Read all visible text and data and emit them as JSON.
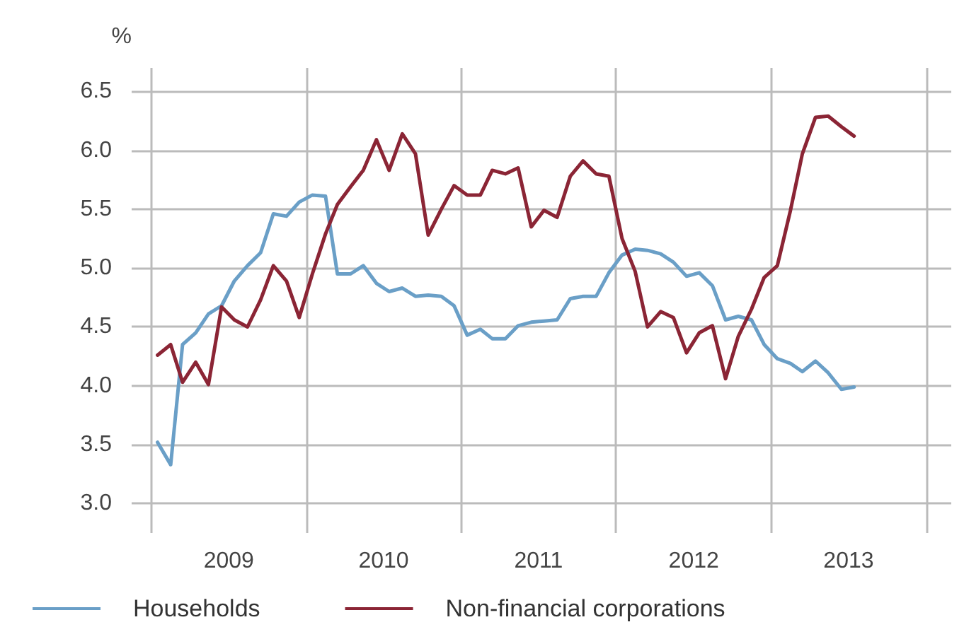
{
  "chart_data": {
    "type": "line",
    "ylabel": "%",
    "x": [
      "2009-01-15",
      "2009-02-15",
      "2009-03-15",
      "2009-04-15",
      "2009-05-15",
      "2009-06-15",
      "2009-07-15",
      "2009-08-15",
      "2009-09-15",
      "2009-10-15",
      "2009-11-15",
      "2009-12-15",
      "2010-01-15",
      "2010-02-15",
      "2010-03-15",
      "2010-04-15",
      "2010-05-15",
      "2010-06-15",
      "2010-07-15",
      "2010-08-15",
      "2010-09-15",
      "2010-10-15",
      "2010-11-15",
      "2010-12-15",
      "2011-01-15",
      "2011-02-15",
      "2011-03-15",
      "2011-04-15",
      "2011-05-15",
      "2011-06-15",
      "2011-07-15",
      "2011-08-15",
      "2011-09-15",
      "2011-10-15",
      "2011-11-15",
      "2011-12-15",
      "2012-01-15",
      "2012-02-15",
      "2012-03-15",
      "2012-04-15",
      "2012-05-15",
      "2012-06-15",
      "2012-07-15",
      "2012-08-15",
      "2012-09-15",
      "2012-10-15",
      "2012-11-15",
      "2012-12-15",
      "2013-01-15",
      "2013-02-15",
      "2013-03-15",
      "2013-04-15",
      "2013-05-15",
      "2013-06-15",
      "2013-07-15"
    ],
    "series": [
      {
        "name": "Households",
        "color": "#6a9fc7",
        "values": [
          3.52,
          3.33,
          4.35,
          4.45,
          4.61,
          4.68,
          4.89,
          5.02,
          5.13,
          5.46,
          5.44,
          5.56,
          5.62,
          5.61,
          4.95,
          4.95,
          5.02,
          4.87,
          4.8,
          4.83,
          4.76,
          4.77,
          4.76,
          4.68,
          4.43,
          4.48,
          4.4,
          4.4,
          4.51,
          4.54,
          4.55,
          4.56,
          4.74,
          4.76,
          4.76,
          4.96,
          5.11,
          5.16,
          5.15,
          5.12,
          5.05,
          4.93,
          4.96,
          4.85,
          4.56,
          4.59,
          4.56,
          4.35,
          4.23,
          4.19,
          4.12,
          4.21,
          4.11,
          3.97,
          3.99
        ]
      },
      {
        "name": "Non-financial corporations",
        "color": "#8b2535",
        "values": [
          4.26,
          4.35,
          4.03,
          4.2,
          4.01,
          4.67,
          4.56,
          4.5,
          4.73,
          5.02,
          4.89,
          4.58,
          4.95,
          5.29,
          5.54,
          5.69,
          5.83,
          6.09,
          5.83,
          6.14,
          5.97,
          5.28,
          5.5,
          5.7,
          5.62,
          5.62,
          5.83,
          5.8,
          5.85,
          5.35,
          5.49,
          5.43,
          5.78,
          5.91,
          5.8,
          5.78,
          5.25,
          4.97,
          4.5,
          4.63,
          4.58,
          4.28,
          4.45,
          4.51,
          4.06,
          4.42,
          4.65,
          4.92,
          5.02,
          5.49,
          5.97,
          6.28,
          6.29,
          6.2,
          6.12
        ]
      }
    ],
    "xlim": [
      "2008-11-15",
      "2014-03-01"
    ],
    "xticks": [
      {
        "value": "2009-01-01",
        "label": null
      },
      {
        "value": "2009-07-02",
        "label": "2009"
      },
      {
        "value": "2010-01-01",
        "label": null
      },
      {
        "value": "2010-07-02",
        "label": "2010"
      },
      {
        "value": "2011-01-01",
        "label": null
      },
      {
        "value": "2011-07-02",
        "label": "2011"
      },
      {
        "value": "2012-01-01",
        "label": null
      },
      {
        "value": "2012-07-02",
        "label": "2012"
      },
      {
        "value": "2013-01-01",
        "label": null
      },
      {
        "value": "2013-07-02",
        "label": "2013"
      },
      {
        "value": "2014-01-01",
        "label": null
      }
    ],
    "ylim": [
      2.75,
      6.7
    ],
    "yticks": [
      {
        "value": 3,
        "label": "3.0"
      },
      {
        "value": 3.5,
        "label": "3.5"
      },
      {
        "value": 4,
        "label": "4.0"
      },
      {
        "value": 4.5,
        "label": "4.5"
      },
      {
        "value": 5,
        "label": "5.0"
      },
      {
        "value": 5.5,
        "label": "5.5"
      },
      {
        "value": 6,
        "label": "6.0"
      },
      {
        "value": 6.5,
        "label": "6.5"
      }
    ],
    "grid": true,
    "legend": "bottom left",
    "line_style": "solid",
    "marker": "none"
  }
}
